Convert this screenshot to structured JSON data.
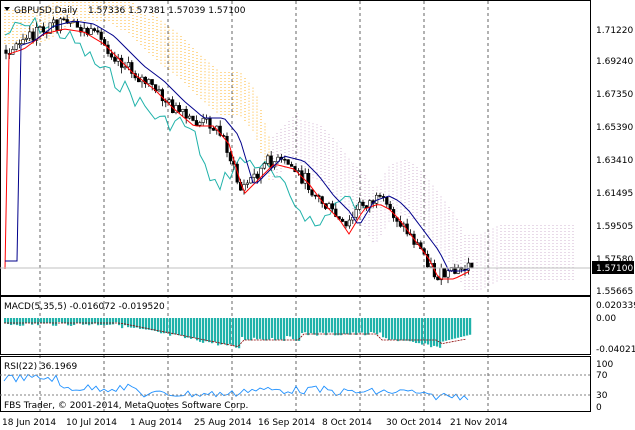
{
  "header": {
    "symbol_label": "GBPUSD,Daily",
    "ohlc_label": "1.57336 1.57381 1.57039 1.57100"
  },
  "price_axis": {
    "ticks": [
      "1.71220",
      "1.69240",
      "1.67350",
      "1.65390",
      "1.63410",
      "1.61495",
      "1.59505",
      "1.57580",
      "1.55665"
    ],
    "current_price": "1.57100"
  },
  "macd": {
    "label": "MACD(5,35,5) -0.016072 -0.019520",
    "ticks": [
      "0.020339",
      "0.00",
      "-0.04021"
    ]
  },
  "rsi": {
    "label": "RSI(22) 36.1969",
    "ticks": [
      "100",
      "70",
      "30",
      "0"
    ]
  },
  "copyright": "FBS Trader, © 2001-2014, MetaQuotes Software Corp.",
  "time_axis": {
    "ticks": [
      "18 Jun 2014",
      "10 Jul 2014",
      "1 Aug 2014",
      "25 Aug 2014",
      "16 Sep 2014",
      "8 Oct 2014",
      "30 Oct 2014",
      "21 Nov 2014"
    ]
  },
  "colors": {
    "background": "#ffffff",
    "bull_candle": "#ffffff",
    "bear_candle": "#000000",
    "kijun": "#00008b",
    "tenkan": "#ff0000",
    "chikou": "#20b2aa",
    "cloud_bull": "#ffa500",
    "cloud_bear": "#c8a2c8",
    "macd_hist": "#20b2aa",
    "rsi_line": "#1e90ff",
    "grid": "#000000"
  }
}
